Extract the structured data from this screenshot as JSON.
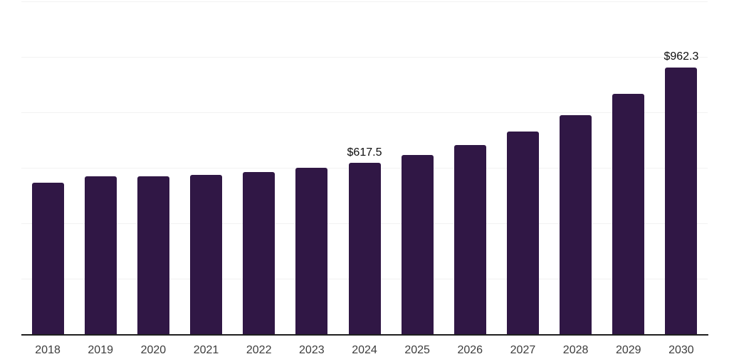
{
  "chart_data": {
    "type": "bar",
    "title": "",
    "xlabel": "",
    "ylabel": "",
    "categories": [
      "2018",
      "2019",
      "2020",
      "2021",
      "2022",
      "2023",
      "2024",
      "2025",
      "2026",
      "2027",
      "2028",
      "2029",
      "2030"
    ],
    "values": [
      546,
      570,
      568,
      574,
      585,
      600,
      617.5,
      647,
      681,
      730,
      790,
      867,
      962.3
    ],
    "data_labels": [
      "",
      "",
      "",
      "",
      "",
      "",
      "$617.5",
      "",
      "",
      "",
      "",
      "",
      "$962.3"
    ],
    "ylim": [
      0,
      1200
    ],
    "grid_step": 200,
    "grid": "on",
    "legend": "none",
    "colors": {
      "bar": "#301745",
      "gridline": "#f2f2f2",
      "axis_line": "#1f1f1f",
      "tick_label": "#3c3c3c",
      "data_label": "#0d0d0d",
      "background": "#ffffff"
    }
  }
}
